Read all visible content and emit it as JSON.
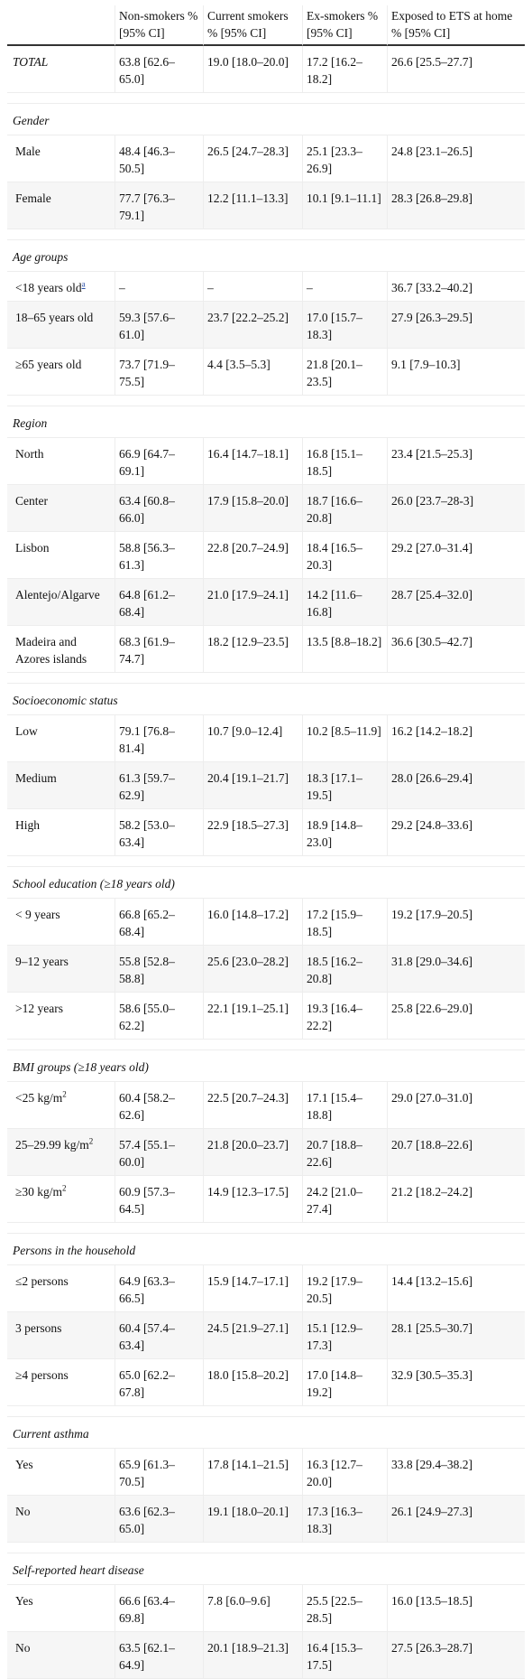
{
  "columns": {
    "c0": "",
    "c1": "Non-smokers % [95% CI]",
    "c2": "Current smokers % [95% CI]",
    "c3": "Ex-smokers % [95% CI]",
    "c4": "Exposed to ETS at home % [95% CI]"
  },
  "total": {
    "label": "TOTAL",
    "non_smokers": "63.8 [62.6–65.0]",
    "current_smokers": "19.0 [18.0–20.0]",
    "ex_smokers": "17.2 [16.2–18.2]",
    "ets": "26.6 [25.5–27.7]"
  },
  "sections": [
    {
      "title": "Gender",
      "rows": [
        {
          "label": "Male",
          "non_smokers": "48.4 [46.3–50.5]",
          "current_smokers": "26.5 [24.7–28.3]",
          "ex_smokers": "25.1 [23.3–26.9]",
          "ets": "24.8 [23.1–26.5]"
        },
        {
          "label": "Female",
          "non_smokers": "77.7 [76.3–79.1]",
          "current_smokers": "12.2 [11.1–13.3]",
          "ex_smokers": "10.1 [9.1–11.1]",
          "ets": "28.3 [26.8–29.8]"
        }
      ]
    },
    {
      "title": "Age groups",
      "rows": [
        {
          "label": "<18 years old",
          "footnote": "a",
          "non_smokers": "–",
          "current_smokers": "–",
          "ex_smokers": "–",
          "ets": "36.7 [33.2–40.2]"
        },
        {
          "label": "18–65 years old",
          "non_smokers": "59.3 [57.6–61.0]",
          "current_smokers": "23.7 [22.2–25.2]",
          "ex_smokers": "17.0 [15.7–18.3]",
          "ets": "27.9 [26.3–29.5]"
        },
        {
          "label": "≥65 years old",
          "non_smokers": "73.7 [71.9–75.5]",
          "current_smokers": "4.4 [3.5–5.3]",
          "ex_smokers": "21.8 [20.1–23.5]",
          "ets": "9.1 [7.9–10.3]"
        }
      ]
    },
    {
      "title": "Region",
      "rows": [
        {
          "label": "North",
          "non_smokers": "66.9 [64.7–69.1]",
          "current_smokers": "16.4 [14.7–18.1]",
          "ex_smokers": "16.8 [15.1–18.5]",
          "ets": "23.4 [21.5–25.3]"
        },
        {
          "label": "Center",
          "non_smokers": "63.4 [60.8–66.0]",
          "current_smokers": "17.9 [15.8–20.0]",
          "ex_smokers": "18.7 [16.6–20.8]",
          "ets": "26.0 [23.7–28-3]"
        },
        {
          "label": "Lisbon",
          "non_smokers": "58.8 [56.3–61.3]",
          "current_smokers": "22.8 [20.7–24.9]",
          "ex_smokers": "18.4 [16.5–20.3]",
          "ets": "29.2 [27.0–31.4]"
        },
        {
          "label": "Alentejo/Algarve",
          "non_smokers": "64.8 [61.2–68.4]",
          "current_smokers": "21.0 [17.9–24.1]",
          "ex_smokers": "14.2 [11.6–16.8]",
          "ets": "28.7 [25.4–32.0]"
        },
        {
          "label": "Madeira and Azores islands",
          "non_smokers": "68.3 [61.9–74.7]",
          "current_smokers": "18.2 [12.9–23.5]",
          "ex_smokers": "13.5 [8.8–18.2]",
          "ets": "36.6 [30.5–42.7]"
        }
      ]
    },
    {
      "title": "Socioeconomic status",
      "rows": [
        {
          "label": "Low",
          "non_smokers": "79.1 [76.8–81.4]",
          "current_smokers": "10.7 [9.0–12.4]",
          "ex_smokers": "10.2 [8.5–11.9]",
          "ets": "16.2 [14.2–18.2]"
        },
        {
          "label": "Medium",
          "non_smokers": "61.3 [59.7–62.9]",
          "current_smokers": "20.4 [19.1–21.7]",
          "ex_smokers": "18.3 [17.1–19.5]",
          "ets": "28.0 [26.6–29.4]"
        },
        {
          "label": "High",
          "non_smokers": "58.2 [53.0–63.4]",
          "current_smokers": "22.9 [18.5–27.3]",
          "ex_smokers": "18.9 [14.8–23.0]",
          "ets": "29.2 [24.8–33.6]"
        }
      ]
    },
    {
      "title": "School education (≥18 years old)",
      "rows": [
        {
          "label": "< 9 years",
          "non_smokers": "66.8 [65.2–68.4]",
          "current_smokers": "16.0 [14.8–17.2]",
          "ex_smokers": "17.2 [15.9–18.5]",
          "ets": "19.2 [17.9–20.5]"
        },
        {
          "label": "9–12 years",
          "non_smokers": "55.8 [52.8–58.8]",
          "current_smokers": "25.6 [23.0–28.2]",
          "ex_smokers": "18.5 [16.2–20.8]",
          "ets": "31.8 [29.0–34.6]"
        },
        {
          "label": ">12 years",
          "non_smokers": "58.6 [55.0–62.2]",
          "current_smokers": "22.1 [19.1–25.1]",
          "ex_smokers": "19.3 [16.4–22.2]",
          "ets": "25.8 [22.6–29.0]"
        }
      ]
    },
    {
      "title": "BMI groups (≥18 years old)",
      "rows": [
        {
          "label": "<25 kg/m",
          "sup": "2",
          "non_smokers": "60.4 [58.2–62.6]",
          "current_smokers": "22.5 [20.7–24.3]",
          "ex_smokers": "17.1 [15.4–18.8]",
          "ets": "29.0 [27.0–31.0]"
        },
        {
          "label": "25–29.99 kg/m",
          "sup": "2",
          "non_smokers": "57.4 [55.1–60.0]",
          "current_smokers": "21.8 [20.0–23.7]",
          "ex_smokers": "20.7 [18.8–22.6]",
          "ets": "20.7 [18.8–22.6]"
        },
        {
          "label": "≥30 kg/m",
          "sup": "2",
          "non_smokers": "60.9 [57.3–64.5]",
          "current_smokers": "14.9 [12.3–17.5]",
          "ex_smokers": "24.2 [21.0–27.4]",
          "ets": "21.2 [18.2–24.2]"
        }
      ]
    },
    {
      "title": "Persons in the household",
      "rows": [
        {
          "label": "≤2 persons",
          "non_smokers": "64.9 [63.3–66.5]",
          "current_smokers": "15.9 [14.7–17.1]",
          "ex_smokers": "19.2 [17.9–20.5]",
          "ets": "14.4 [13.2–15.6]"
        },
        {
          "label": "3 persons",
          "non_smokers": "60.4 [57.4–63.4]",
          "current_smokers": "24.5 [21.9–27.1]",
          "ex_smokers": "15.1 [12.9–17.3]",
          "ets": "28.1 [25.5–30.7]"
        },
        {
          "label": "≥4 persons",
          "non_smokers": "65.0 [62.2–67.8]",
          "current_smokers": "18.0 [15.8–20.2]",
          "ex_smokers": "17.0 [14.8–19.2]",
          "ets": "32.9 [30.5–35.3]"
        }
      ]
    },
    {
      "title": "Current asthma",
      "rows": [
        {
          "label": "Yes",
          "non_smokers": "65.9 [61.3–70.5]",
          "current_smokers": "17.8 [14.1–21.5]",
          "ex_smokers": "16.3 [12.7–20.0]",
          "ets": "33.8 [29.4–38.2]"
        },
        {
          "label": "No",
          "non_smokers": "63.6 [62.3–65.0]",
          "current_smokers": "19.1 [18.0–20.1]",
          "ex_smokers": "17.3 [16.3–18.3]",
          "ets": "26.1 [24.9–27.3]"
        }
      ]
    },
    {
      "title": "Self-reported heart disease",
      "rows": [
        {
          "label": "Yes",
          "non_smokers": "66.6 [63.4–69.8]",
          "current_smokers": "7.8 [6.0–9.6]",
          "ex_smokers": "25.5 [22.5–28.5]",
          "ets": "16.0 [13.5–18.5]"
        },
        {
          "label": "No",
          "non_smokers": "63.5 [62.1–64.9]",
          "current_smokers": "20.1 [18.9–21.3]",
          "ex_smokers": "16.4 [15.3–17.5]",
          "ets": "27.5 [26.3–28.7]"
        }
      ]
    }
  ]
}
